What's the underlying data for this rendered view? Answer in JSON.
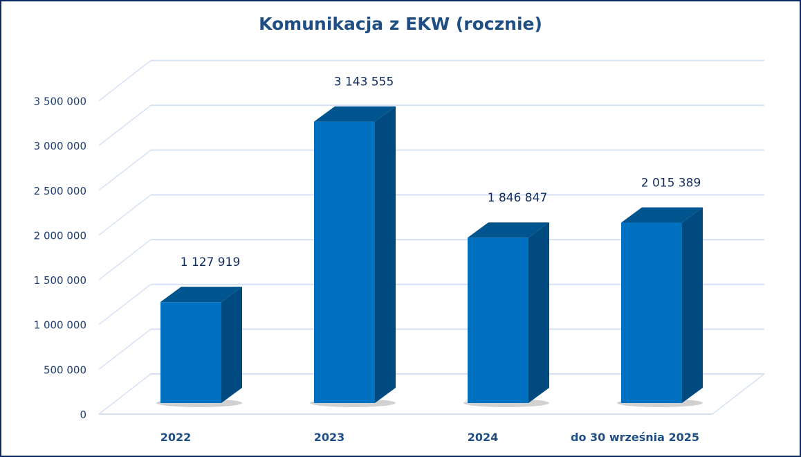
{
  "chart_data": {
    "type": "bar",
    "title": "Komunikacja z EKW (rocznie)",
    "xlabel": "",
    "ylabel": "",
    "categories": [
      "2022",
      "2023",
      "2024",
      "do 30 września 2025"
    ],
    "values": [
      1127919,
      3143555,
      1846847,
      2015389
    ],
    "data_labels": [
      "1 127 919",
      "3 143 555",
      "1 846 847",
      "2 015 389"
    ],
    "ylim": [
      0,
      3500000
    ],
    "yticks": [
      0,
      500000,
      1000000,
      1500000,
      2000000,
      2500000,
      3000000,
      3500000
    ],
    "ytick_labels": [
      "0",
      "500 000",
      "1 000 000",
      "1 500 000",
      "2 000 000",
      "2 500 000",
      "3 000 000",
      "3 500 000"
    ],
    "grid": true,
    "legend": "none",
    "style": "3d-column"
  },
  "colors": {
    "bar_front": "#0070c0",
    "bar_top": "#00558f",
    "bar_side": "#004a80",
    "grid": "#d6e2f3",
    "title": "#1f4e85",
    "frame": "#0b2a63"
  }
}
